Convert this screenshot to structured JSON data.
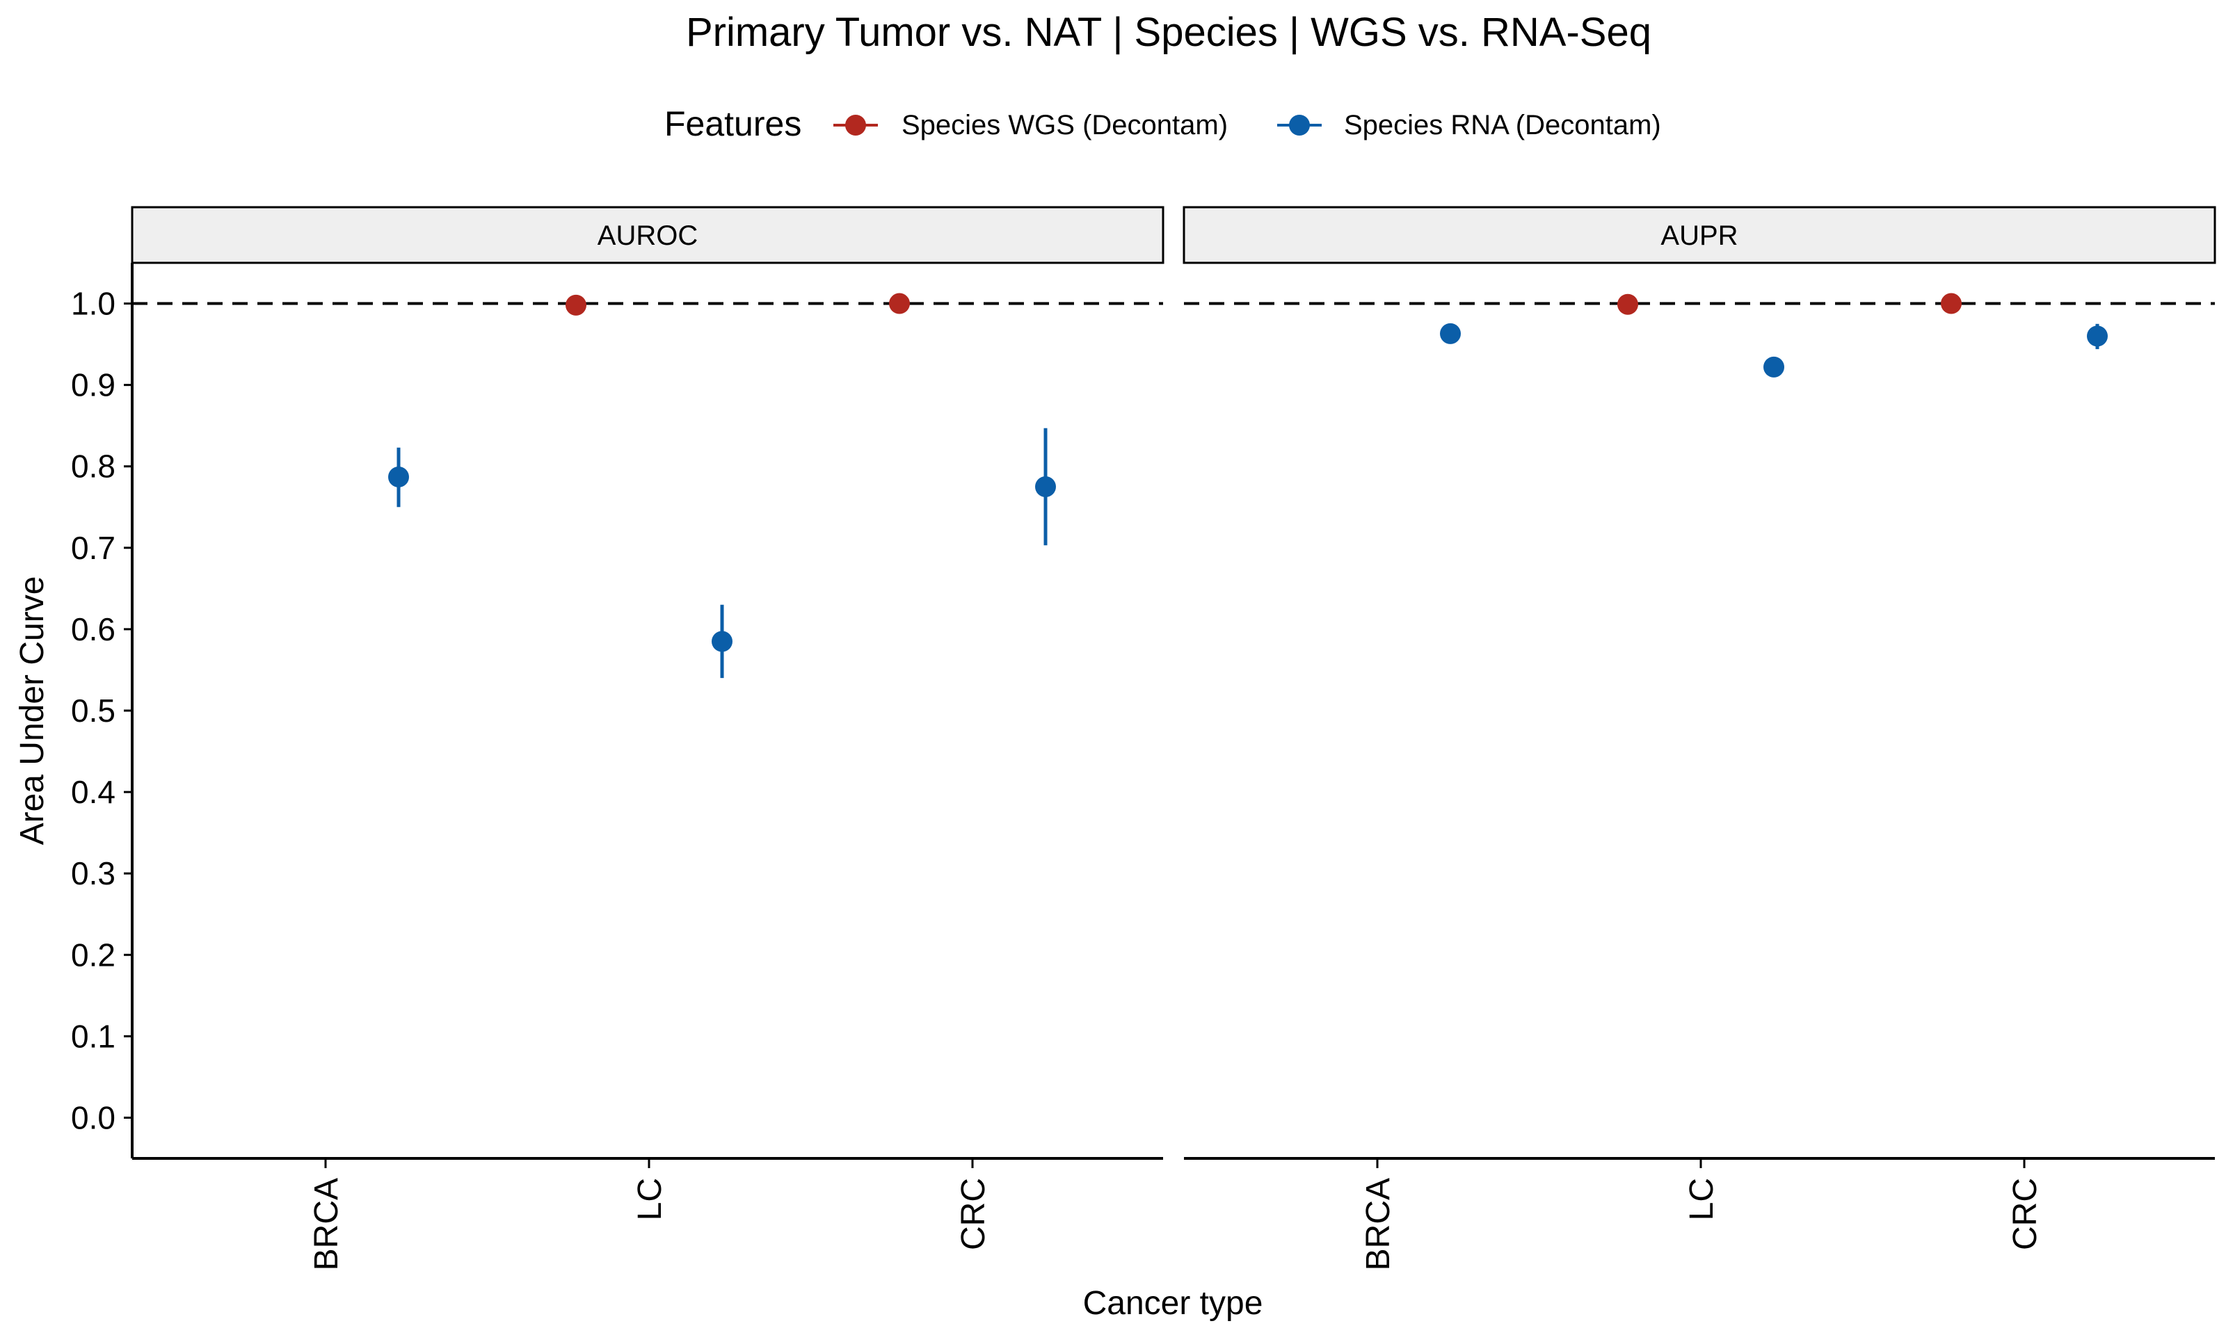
{
  "chart_data": {
    "type": "scatter",
    "title": "Primary Tumor vs. NAT | Species | WGS vs. RNA-Seq",
    "xlabel": "Cancer type",
    "ylabel": "Area Under Curve",
    "ylim": [
      -0.05,
      1.05
    ],
    "yticks": [
      "0.0",
      "0.1",
      "0.2",
      "0.3",
      "0.4",
      "0.5",
      "0.6",
      "0.7",
      "0.8",
      "0.9",
      "1.0"
    ],
    "reference_line": 1.0,
    "categories": [
      "BRCA",
      "LC",
      "CRC"
    ],
    "legend": {
      "title": "Features",
      "placement": "top"
    },
    "panels": [
      {
        "name": "AUROC",
        "series": [
          {
            "name": "Species WGS (Decontam)",
            "color": "#B2281F",
            "points": [
              {
                "category": "LC",
                "value": 0.998,
                "lower": 0.997,
                "upper": 0.999
              },
              {
                "category": "CRC",
                "value": 1.0,
                "lower": 1.0,
                "upper": 1.0
              }
            ]
          },
          {
            "name": "Species RNA (Decontam)",
            "color": "#0B5EA8",
            "points": [
              {
                "category": "BRCA",
                "value": 0.787,
                "lower": 0.75,
                "upper": 0.823
              },
              {
                "category": "LC",
                "value": 0.585,
                "lower": 0.54,
                "upper": 0.63
              },
              {
                "category": "CRC",
                "value": 0.775,
                "lower": 0.703,
                "upper": 0.847
              }
            ]
          }
        ]
      },
      {
        "name": "AUPR",
        "series": [
          {
            "name": "Species WGS (Decontam)",
            "color": "#B2281F",
            "points": [
              {
                "category": "LC",
                "value": 0.999,
                "lower": 0.998,
                "upper": 1.0
              },
              {
                "category": "CRC",
                "value": 1.0,
                "lower": 1.0,
                "upper": 1.0
              }
            ]
          },
          {
            "name": "Species RNA (Decontam)",
            "color": "#0B5EA8",
            "points": [
              {
                "category": "BRCA",
                "value": 0.963,
                "lower": 0.958,
                "upper": 0.968
              },
              {
                "category": "LC",
                "value": 0.922,
                "lower": 0.917,
                "upper": 0.927
              },
              {
                "category": "CRC",
                "value": 0.96,
                "lower": 0.944,
                "upper": 0.975
              }
            ]
          }
        ]
      }
    ]
  }
}
